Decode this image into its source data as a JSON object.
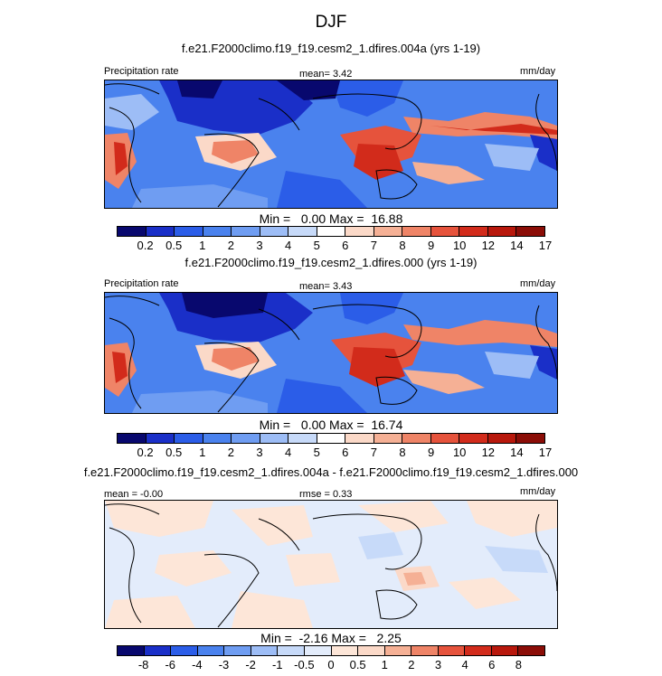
{
  "title": "DJF",
  "colors": {
    "abs": [
      "#08086e",
      "#1a2fc8",
      "#2b5de8",
      "#4a82ee",
      "#6f9df2",
      "#9dbdf6",
      "#c7daf9",
      "#ffffff",
      "#fbd9c8",
      "#f5b095",
      "#ef8467",
      "#e6533c",
      "#d22b1b",
      "#b8180c",
      "#8b0d07"
    ],
    "diff": [
      "#08086e",
      "#1a2fc8",
      "#2b5de8",
      "#4a82ee",
      "#6f9df2",
      "#9dbdf6",
      "#c7daf9",
      "#e3ecfb",
      "#fde6d8",
      "#fbd9c8",
      "#f5b095",
      "#ef8467",
      "#e6533c",
      "#d22b1b",
      "#b8180c",
      "#8b0d07"
    ]
  },
  "panels": [
    {
      "case": "f.e21.F2000climo.f19_f19.cesm2_1.dfires.004a (yrs 1-19)",
      "left_label": "Precipitation rate",
      "center_label": "mean=   3.42",
      "right_label": "mm/day",
      "min_max": "Min =   0.00 Max =  16.88",
      "ticks": [
        "0.2",
        "0.5",
        "1",
        "2",
        "3",
        "4",
        "5",
        "6",
        "7",
        "8",
        "9",
        "10",
        "12",
        "14",
        "17"
      ]
    },
    {
      "case": "f.e21.F2000climo.f19_f19.cesm2_1.dfires.000 (yrs 1-19)",
      "left_label": "Precipitation rate",
      "center_label": "mean=   3.43",
      "right_label": "mm/day",
      "min_max": "Min =   0.00 Max =  16.74",
      "ticks": [
        "0.2",
        "0.5",
        "1",
        "2",
        "3",
        "4",
        "5",
        "6",
        "7",
        "8",
        "9",
        "10",
        "12",
        "14",
        "17"
      ]
    },
    {
      "case": "f.e21.F2000climo.f19_f19.cesm2_1.dfires.004a - f.e21.F2000climo.f19_f19.cesm2_1.dfires.000",
      "left_label": "mean =  -0.00",
      "center_label": "rmse =   0.33",
      "right_label": "mm/day",
      "min_max": "Min =  -2.16 Max =   2.25",
      "ticks": [
        "-8",
        "-6",
        "-4",
        "-3",
        "-2",
        "-1",
        "-0.5",
        "0",
        "0.5",
        "1",
        "2",
        "3",
        "4",
        "6",
        "8"
      ]
    }
  ],
  "chart_data": [
    {
      "type": "heatmap",
      "title": "f.e21.F2000climo.f19_f19.cesm2_1.dfires.004a (yrs 1-19)",
      "variable": "Precipitation rate",
      "units": "mm/day",
      "mean": 3.42,
      "min": 0.0,
      "max": 16.88,
      "contour_levels": [
        0.2,
        0.5,
        1,
        2,
        3,
        4,
        5,
        6,
        7,
        8,
        9,
        10,
        12,
        14,
        17
      ],
      "grid": "f19_f19"
    },
    {
      "type": "heatmap",
      "title": "f.e21.F2000climo.f19_f19.cesm2_1.dfires.000 (yrs 1-19)",
      "variable": "Precipitation rate",
      "units": "mm/day",
      "mean": 3.43,
      "min": 0.0,
      "max": 16.74,
      "contour_levels": [
        0.2,
        0.5,
        1,
        2,
        3,
        4,
        5,
        6,
        7,
        8,
        9,
        10,
        12,
        14,
        17
      ],
      "grid": "f19_f19"
    },
    {
      "type": "heatmap",
      "title": "f.e21.F2000climo.f19_f19.cesm2_1.dfires.004a - f.e21.F2000climo.f19_f19.cesm2_1.dfires.000",
      "units": "mm/day",
      "mean": -0.0,
      "rmse": 0.33,
      "min": -2.16,
      "max": 2.25,
      "contour_levels": [
        -8,
        -6,
        -4,
        -3,
        -2,
        -1,
        -0.5,
        0,
        0.5,
        1,
        2,
        3,
        4,
        6,
        8
      ]
    }
  ]
}
